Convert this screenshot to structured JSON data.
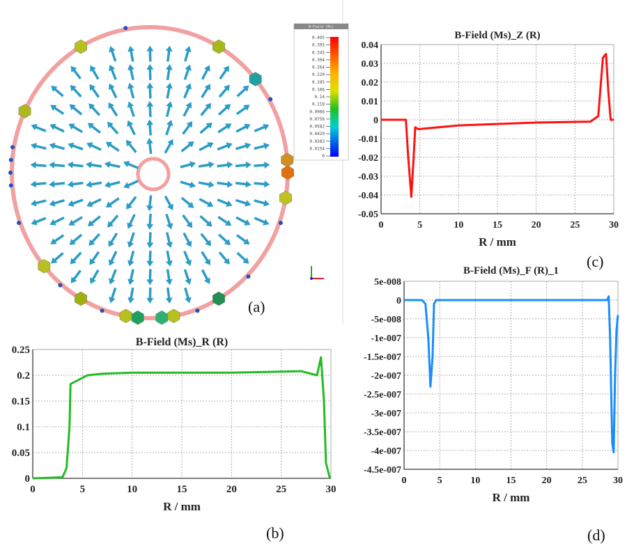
{
  "panel_labels": {
    "a": "(a)",
    "b": "(b)",
    "c": "(c)",
    "d": "(d)"
  },
  "field_plot": {
    "colorbar_title": "B-Field (Ms)",
    "colorbar_ticks": [
      "0.495",
      "0.395",
      "0.345",
      "0.304",
      "0.264",
      "0.220",
      "0.195",
      "0.166",
      "0.14",
      "0.118",
      "0.0966",
      "0.0756",
      "0.0582",
      "0.0420",
      "0.0283",
      "0.0154",
      "0"
    ],
    "arrow_color": "#2b9cc4",
    "rim_color": "#f2a0a0"
  },
  "chart_data": [
    {
      "id": "b",
      "type": "line",
      "title": "B-Field (Ms)_R (R)",
      "xlabel": "R / mm",
      "ylabel": "",
      "xlim": [
        0,
        30
      ],
      "ylim": [
        0,
        0.25
      ],
      "xticks": [
        "0",
        "5",
        "10",
        "15",
        "20",
        "25",
        "30"
      ],
      "yticks": [
        "0",
        "0.05",
        "0.1",
        "0.15",
        "0.2",
        "0.25"
      ],
      "grid": true,
      "color": "#22bb22",
      "x": [
        0,
        3,
        3.4,
        3.7,
        3.8,
        4.5,
        5.5,
        7,
        10,
        20,
        27,
        28.6,
        29,
        29.3,
        29.5,
        29.9
      ],
      "y": [
        0,
        0.002,
        0.02,
        0.1,
        0.183,
        0.19,
        0.2,
        0.203,
        0.205,
        0.205,
        0.208,
        0.2,
        0.235,
        0.15,
        0.03,
        0
      ]
    },
    {
      "id": "c",
      "type": "line",
      "title": "B-Field (Ms)_Z (R)",
      "xlabel": "R / mm",
      "ylabel": "",
      "xlim": [
        0,
        30
      ],
      "ylim": [
        -0.05,
        0.04
      ],
      "xticks": [
        "0",
        "5",
        "10",
        "15",
        "20",
        "25",
        "30"
      ],
      "yticks": [
        "-0.05",
        "-0.04",
        "-0.03",
        "-0.02",
        "-0.01",
        "0",
        "0.01",
        "0.02",
        "0.03",
        "0.04"
      ],
      "grid": true,
      "color": "#ff1010",
      "x": [
        0,
        3.2,
        3.5,
        3.9,
        4.2,
        4.4,
        4.8,
        10,
        20,
        27,
        28,
        28.6,
        29,
        29.3,
        29.6,
        30
      ],
      "y": [
        0,
        0,
        -0.02,
        -0.041,
        -0.02,
        -0.004,
        -0.005,
        -0.003,
        -0.0015,
        -0.001,
        0.002,
        0.033,
        0.035,
        0.015,
        0,
        0
      ]
    },
    {
      "id": "d",
      "type": "line",
      "title": "B-Field (Ms)_F (R)_1",
      "xlabel": "R / mm",
      "ylabel": "",
      "xlim": [
        0,
        30
      ],
      "ylim": [
        -4.5e-07,
        5e-08
      ],
      "xticks": [
        "0",
        "5",
        "10",
        "15",
        "20",
        "25",
        "30"
      ],
      "yticks": [
        "-4.5e-007",
        "-4e-007",
        "-3.5e-007",
        "-3e-007",
        "-2.5e-007",
        "-2e-007",
        "-1.5e-007",
        "-1e-007",
        "-5e-008",
        "0",
        "5e-008"
      ],
      "grid": true,
      "color": "#1a8cff",
      "x": [
        0,
        2.5,
        3,
        3.4,
        3.7,
        4,
        4.2,
        4.5,
        28.5,
        28.7,
        28.9,
        29.2,
        29.4,
        29.6,
        29.8,
        30
      ],
      "y": [
        0,
        0,
        -1e-08,
        -1e-07,
        -2.3e-07,
        -1.5e-07,
        -1e-08,
        0,
        0,
        1e-08,
        -1e-07,
        -3.8e-07,
        -4.05e-07,
        -2e-07,
        -8e-08,
        -4e-08
      ]
    }
  ]
}
